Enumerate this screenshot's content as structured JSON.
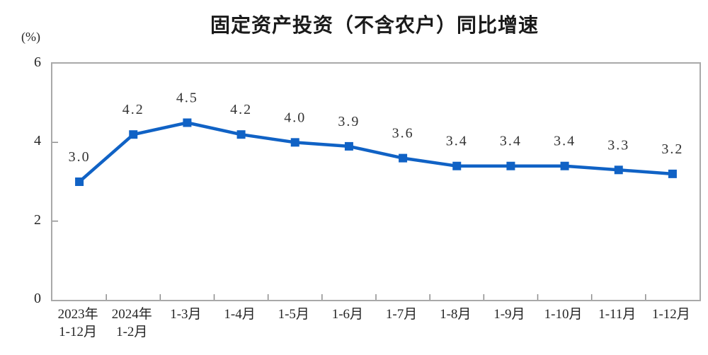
{
  "chart_data": {
    "type": "line",
    "title": "固定资产投资（不含农户）同比增速",
    "unit_label": "(%)",
    "categories": [
      {
        "lines": [
          "2023年",
          "1-12月"
        ]
      },
      {
        "lines": [
          "2024年",
          "1-2月"
        ]
      },
      {
        "lines": [
          "1-3月"
        ]
      },
      {
        "lines": [
          "1-4月"
        ]
      },
      {
        "lines": [
          "1-5月"
        ]
      },
      {
        "lines": [
          "1-6月"
        ]
      },
      {
        "lines": [
          "1-7月"
        ]
      },
      {
        "lines": [
          "1-8月"
        ]
      },
      {
        "lines": [
          "1-9月"
        ]
      },
      {
        "lines": [
          "1-10月"
        ]
      },
      {
        "lines": [
          "1-11月"
        ]
      },
      {
        "lines": [
          "1-12月"
        ]
      }
    ],
    "values": [
      3.0,
      4.2,
      4.5,
      4.2,
      4.0,
      3.9,
      3.6,
      3.4,
      3.4,
      3.4,
      3.3,
      3.2
    ],
    "point_labels": [
      "3.0",
      "4.2",
      "4.5",
      "4.2",
      "4.0",
      "3.9",
      "3.6",
      "3.4",
      "3.4",
      "3.4",
      "3.3",
      "3.2"
    ],
    "xlabel": "",
    "ylabel": "(%)",
    "ylim": [
      0,
      6
    ],
    "yticks": [
      0,
      2,
      4,
      6
    ],
    "grid": false,
    "legend": "none",
    "line_color": "#1062c5",
    "marker": "square",
    "axis_color": "#a9a9a9",
    "tick_color": "#8c8c8c",
    "label_color": "#333333",
    "text_color": "#262626"
  }
}
